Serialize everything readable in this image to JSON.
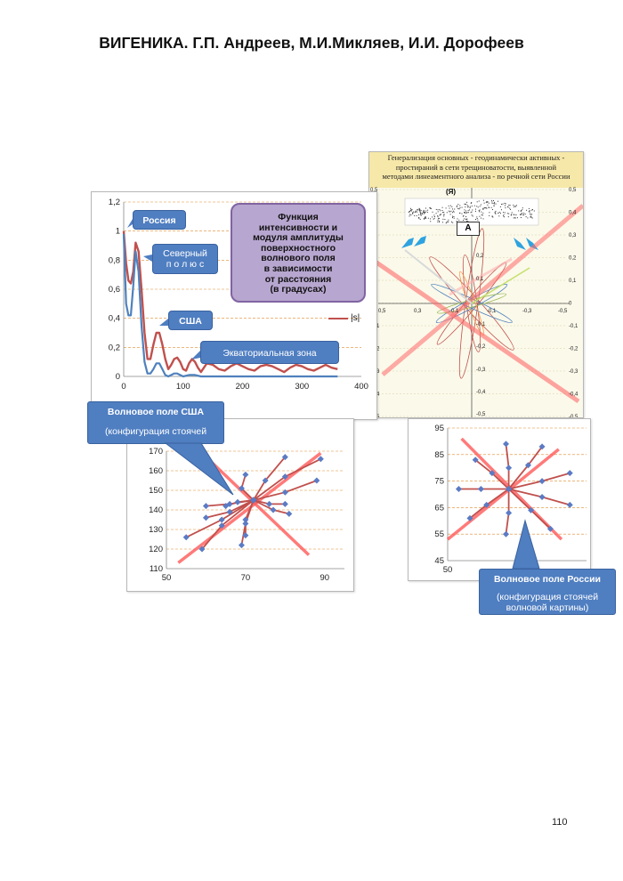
{
  "header": {
    "title": "ВИГЕНИКА. Г.П. Андреев, М.И.Микляев, И.И. Дорофеев"
  },
  "page_number": "110",
  "map_panel": {
    "title_lines": [
      "Генерализация основных - геодинамически активных -",
      "простираний в сети трещиноватости, выявленной",
      "методами линеаментного анализа - по речной сети России"
    ],
    "marker_top": "(Я)",
    "marker_box": "А",
    "right_ticks": [
      "0,5",
      "0,4",
      "0,3",
      "0,2",
      "0,1",
      "0",
      "-0,1",
      "-0,2",
      "-0,3",
      "-0,4",
      "-0,5"
    ],
    "left_ticks": [
      "0,5",
      "0,4",
      "0,3",
      "0,2",
      "0,1",
      "0",
      "-0,1",
      "-0,2",
      "-0,3",
      "-0,4",
      "-0,5"
    ],
    "inner_ticks": [
      "0,2",
      "0,1",
      "-0,1",
      "-0,2",
      "-0,3",
      "-0,4",
      "-0,5"
    ],
    "x_ticks": [
      "0,5",
      "0,3",
      "0,1",
      "-0,1",
      "-0,3",
      "-0,5"
    ]
  },
  "function_panel": {
    "title_lines": [
      "Функция",
      "интенсивности и",
      "модуля амплитуды",
      "поверхностного",
      "волнового поля",
      "в зависимости",
      "от расстояния",
      "(в градусах)"
    ],
    "legend": "|s|",
    "callout_russia": "Россия",
    "callout_pole": [
      "Северный",
      "п о л ю с"
    ],
    "callout_usa": "США",
    "callout_equator": "Экваториальная зона"
  },
  "usa_panel": {
    "callout_lines": [
      "Волновое поле США",
      "",
      "(конфигурация стоячей"
    ]
  },
  "russia_panel": {
    "callout_lines": [
      "Волновое поле России",
      "",
      "(конфигурация стоячей",
      "волновой картины)"
    ]
  },
  "colors": {
    "line_red": "#c0504d",
    "line_blue": "#4f81bd",
    "marker": "#5b7bc4",
    "accent_red": "#ff5a5a",
    "callout": "#4f7ec1"
  },
  "chart_data": [
    {
      "type": "line",
      "title": "Функция интенсивности и модуля амплитуды поверхностного волнового поля в зависимости от расстояния (в градусах)",
      "x_ticks": [
        "0",
        "100",
        "200",
        "300",
        "400"
      ],
      "y_ticks": [
        "0",
        "0,2",
        "0,4",
        "0,6",
        "0,8",
        "1",
        "1,2"
      ],
      "xlim": [
        0,
        400
      ],
      "ylim": [
        0,
        1.2
      ],
      "grid": true,
      "legend_position": "right",
      "series": [
        {
          "name": "|s|",
          "x": [
            0,
            4,
            8,
            12,
            16,
            20,
            25,
            30,
            35,
            40,
            45,
            50,
            55,
            60,
            65,
            70,
            75,
            80,
            85,
            90,
            95,
            100,
            105,
            110,
            115,
            120,
            125,
            130,
            135,
            140,
            150,
            160,
            170,
            180,
            190,
            200,
            210,
            220,
            230,
            240,
            250,
            260,
            270,
            280,
            290,
            300,
            310,
            320,
            330,
            340,
            350,
            360
          ],
          "y": [
            1.0,
            0.78,
            0.66,
            0.64,
            0.72,
            0.92,
            0.86,
            0.6,
            0.3,
            0.12,
            0.12,
            0.22,
            0.3,
            0.3,
            0.22,
            0.12,
            0.05,
            0.08,
            0.12,
            0.13,
            0.1,
            0.05,
            0.04,
            0.09,
            0.12,
            0.1,
            0.06,
            0.03,
            0.06,
            0.09,
            0.08,
            0.05,
            0.04,
            0.07,
            0.09,
            0.07,
            0.05,
            0.04,
            0.07,
            0.08,
            0.07,
            0.05,
            0.03,
            0.06,
            0.08,
            0.07,
            0.05,
            0.04,
            0.06,
            0.08,
            0.06,
            0.05
          ]
        },
        {
          "name": "",
          "x": [
            0,
            4,
            8,
            12,
            16,
            20,
            25,
            30,
            35,
            40,
            45,
            50,
            55,
            60,
            65,
            70,
            75,
            80,
            85,
            90,
            95,
            100,
            110,
            120,
            130,
            140,
            150,
            160,
            180,
            200,
            250,
            300,
            360
          ],
          "y": [
            0.98,
            0.5,
            0.42,
            0.42,
            0.62,
            0.86,
            0.72,
            0.35,
            0.1,
            0.02,
            0.02,
            0.05,
            0.09,
            0.09,
            0.05,
            0.01,
            0.0,
            0.01,
            0.02,
            0.02,
            0.01,
            0.0,
            0.01,
            0.01,
            0.0,
            0.0,
            0.0,
            0.0,
            0.0,
            0.0,
            0.0,
            0.0,
            0.0
          ]
        }
      ]
    },
    {
      "type": "scatter",
      "title": "",
      "x_ticks": [
        "50",
        "70",
        "90"
      ],
      "y_ticks": [
        "110",
        "120",
        "130",
        "140",
        "150",
        "160",
        "170"
      ],
      "xlim": [
        50,
        95
      ],
      "ylim": [
        110,
        170
      ],
      "center": [
        72,
        145
      ],
      "endpoints": [
        [
          70,
          158
        ],
        [
          80,
          167
        ],
        [
          89,
          166
        ],
        [
          88,
          155
        ],
        [
          80,
          143
        ],
        [
          81,
          138
        ],
        [
          70,
          127
        ],
        [
          69,
          122
        ],
        [
          59,
          120
        ],
        [
          55,
          126
        ],
        [
          60,
          136
        ],
        [
          60,
          142
        ],
        [
          65,
          142
        ]
      ],
      "midpoints": [
        [
          69,
          151
        ],
        [
          75,
          155
        ],
        [
          80,
          157
        ],
        [
          80,
          149
        ],
        [
          76,
          143
        ],
        [
          77,
          140
        ],
        [
          70,
          135
        ],
        [
          70,
          133
        ],
        [
          64,
          132
        ],
        [
          64,
          135
        ],
        [
          66,
          139
        ],
        [
          66,
          143
        ],
        [
          68,
          144
        ]
      ],
      "axis_lines": [
        [
          [
            53,
            113
          ],
          [
            89,
            169
          ]
        ],
        [
          [
            59,
            169
          ],
          [
            86,
            117
          ]
        ]
      ]
    },
    {
      "type": "scatter",
      "title": "",
      "x_ticks": [
        "50"
      ],
      "y_ticks": [
        "45",
        "55",
        "65",
        "75",
        "85",
        "95"
      ],
      "xlim": [
        50,
        100
      ],
      "ylim": [
        45,
        95
      ],
      "center": [
        72,
        72
      ],
      "endpoints": [
        [
          71,
          89
        ],
        [
          84,
          88
        ],
        [
          94,
          78
        ],
        [
          94,
          66
        ],
        [
          87,
          57
        ],
        [
          71,
          55
        ],
        [
          58,
          61
        ],
        [
          54,
          72
        ],
        [
          60,
          83
        ]
      ],
      "midpoints": [
        [
          72,
          80
        ],
        [
          79,
          81
        ],
        [
          84,
          75
        ],
        [
          84,
          69
        ],
        [
          80,
          64
        ],
        [
          72,
          63
        ],
        [
          64,
          66
        ],
        [
          62,
          72
        ],
        [
          66,
          78
        ]
      ],
      "axis_lines": [
        [
          [
            50,
            53
          ],
          [
            90,
            87
          ]
        ],
        [
          [
            55,
            91
          ],
          [
            91,
            53
          ]
        ]
      ]
    }
  ]
}
